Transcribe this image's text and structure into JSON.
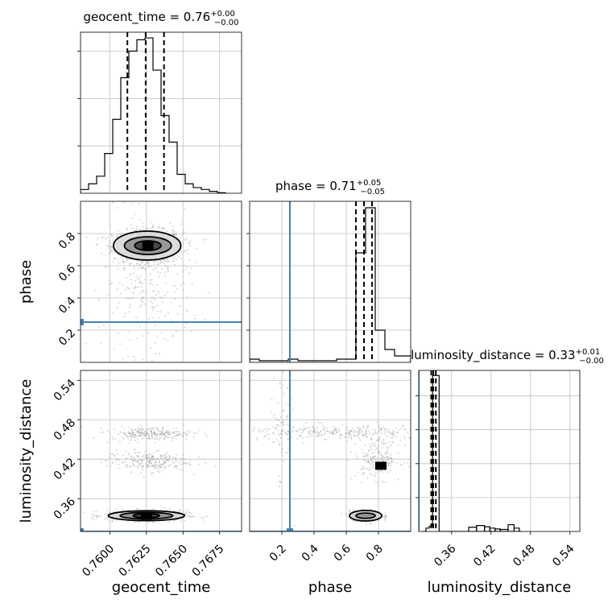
{
  "chart_data": {
    "type": "corner",
    "parameters": [
      "geocent_time",
      "phase",
      "luminosity_distance"
    ],
    "truths": {
      "geocent_time": null,
      "phase": 0.25,
      "luminosity_distance": 0.31
    },
    "grid": true,
    "axis_ranges": {
      "geocent_time": [
        0.758,
        0.769
      ],
      "phase": [
        0.0,
        1.0
      ],
      "luminosity_distance": [
        0.31,
        0.555
      ]
    },
    "ticks": {
      "geocent_time": [
        "0.7600",
        "0.7625",
        "0.7650",
        "0.7675"
      ],
      "phase": [
        "0.2",
        "0.4",
        "0.6",
        "0.8"
      ],
      "luminosity_distance": [
        "0.36",
        "0.42",
        "0.48",
        "0.54"
      ]
    },
    "tick_values": {
      "geocent_time": [
        0.76,
        0.7625,
        0.765,
        0.7675
      ],
      "phase": [
        0.2,
        0.4,
        0.6,
        0.8
      ],
      "luminosity_distance": [
        0.36,
        0.42,
        0.48,
        0.54
      ]
    },
    "titles": {
      "geocent_time": {
        "label": "geocent_time = 0.76",
        "plus": "+0.00",
        "minus": "−0.00"
      },
      "phase": {
        "label": "phase = 0.71",
        "plus": "+0.05",
        "minus": "−0.05"
      },
      "luminosity_distance": {
        "label": "luminosity_distance = 0.33",
        "plus": "+0.01",
        "minus": "−0.00"
      }
    },
    "histograms": {
      "geocent_time": {
        "edges": [
          0.758,
          0.75855,
          0.7591,
          0.75965,
          0.7602,
          0.76075,
          0.7613,
          0.76185,
          0.7624,
          0.76295,
          0.7635,
          0.76405,
          0.7646,
          0.76515,
          0.7657,
          0.76625,
          0.7668,
          0.76735,
          0.7679
        ],
        "counts": [
          0.02,
          0.05,
          0.09,
          0.21,
          0.39,
          0.61,
          0.75,
          0.81,
          0.82,
          0.65,
          0.41,
          0.27,
          0.1,
          0.05,
          0.03,
          0.02,
          0.01,
          0.003
        ],
        "quantiles": [
          0.7612,
          0.76245,
          0.7637
        ]
      },
      "phase": {
        "edges": [
          0.0,
          0.06,
          0.12,
          0.18,
          0.24,
          0.3,
          0.36,
          0.42,
          0.48,
          0.54,
          0.6,
          0.66,
          0.72,
          0.78,
          0.84,
          0.9,
          0.96,
          1.0
        ],
        "counts": [
          0.02,
          0.01,
          0.01,
          0.01,
          0.02,
          0.01,
          0.01,
          0.01,
          0.01,
          0.02,
          0.02,
          0.68,
          0.96,
          0.2,
          0.08,
          0.04,
          0.04
        ],
        "quantiles": [
          0.66,
          0.71,
          0.76
        ]
      },
      "luminosity_distance": {
        "edges": [
          0.316,
          0.321,
          0.326,
          0.331,
          0.336,
          0.341,
          0.346,
          0.351,
          0.356,
          0.361,
          0.366,
          0.371,
          0.376,
          0.381,
          0.386,
          0.391,
          0.396,
          0.401,
          0.406,
          0.411,
          0.416,
          0.421,
          0.426,
          0.431,
          0.436,
          0.441,
          0.446,
          0.451,
          0.456,
          0.461,
          0.466
        ],
        "counts": [
          0.0,
          0.02,
          0.03,
          0.92,
          0.92,
          0.0,
          0.0,
          0.0,
          0.0,
          0.0,
          0.0,
          0.0,
          0.0,
          0.0,
          0.0,
          0.0,
          0.0,
          0.0,
          0.0,
          0.0,
          0.0,
          0.0,
          0.0,
          0.0,
          0.0,
          0.0,
          0.0,
          0.0,
          0.0,
          0.0
        ],
        "quantiles": [
          0.329,
          0.332,
          0.336
        ]
      }
    },
    "extra_histogram_bumps": {
      "luminosity_distance": [
        {
          "x0": 0.386,
          "x1": 0.398,
          "value": 0.025
        },
        {
          "x0": 0.398,
          "x1": 0.41,
          "value": 0.035
        },
        {
          "x0": 0.41,
          "x1": 0.418,
          "value": 0.028
        },
        {
          "x0": 0.418,
          "x1": 0.426,
          "value": 0.02
        },
        {
          "x0": 0.426,
          "x1": 0.434,
          "value": 0.015
        },
        {
          "x0": 0.434,
          "x1": 0.446,
          "value": 0.012
        },
        {
          "x0": 0.446,
          "x1": 0.455,
          "value": 0.04
        },
        {
          "x0": 0.455,
          "x1": 0.463,
          "value": 0.02
        }
      ]
    },
    "hist_ymax": {
      "geocent_time": 0.85,
      "phase": 1.0,
      "luminosity_distance": 0.95
    },
    "hist_yticks": {
      "geocent_time": [
        0.25,
        0.5,
        0.75
      ],
      "phase": [
        0.2,
        0.4,
        0.6,
        0.8
      ],
      "luminosity_distance": [
        0.2,
        0.4,
        0.6,
        0.8
      ]
    },
    "scatter_clusters": {
      "phase_vs_geocent_time": [
        {
          "x": 0.7626,
          "y": 0.72,
          "sx": 0.0012,
          "sy": 0.05,
          "n": 900
        },
        {
          "x": 0.7626,
          "y": 0.5,
          "sx": 0.0015,
          "sy": 0.22,
          "n": 300
        }
      ],
      "luminosity_distance_vs_geocent_time": [
        {
          "x": 0.7625,
          "y": 0.334,
          "sx": 0.0014,
          "sy": 0.004,
          "n": 600
        },
        {
          "x": 0.7628,
          "y": 0.459,
          "sx": 0.0014,
          "sy": 0.005,
          "n": 250
        },
        {
          "x": 0.7626,
          "y": 0.417,
          "sx": 0.0014,
          "sy": 0.008,
          "n": 250
        }
      ],
      "luminosity_distance_vs_phase": [
        {
          "x": 0.72,
          "y": 0.334,
          "sx": 0.05,
          "sy": 0.004,
          "n": 400
        },
        {
          "x": 0.55,
          "y": 0.46,
          "sx": 0.3,
          "sy": 0.006,
          "n": 300
        },
        {
          "x": 0.8,
          "y": 0.42,
          "sx": 0.07,
          "sy": 0.015,
          "n": 200
        },
        {
          "x": 0.2,
          "y": 0.47,
          "sx": 0.03,
          "sy": 0.05,
          "n": 60
        }
      ]
    },
    "contours": {
      "phase_vs_geocent_time": [
        {
          "cx": 0.76255,
          "cy": 0.725,
          "rx": 0.0023,
          "ry": 0.09
        },
        {
          "cx": 0.7626,
          "cy": 0.725,
          "rx": 0.0016,
          "ry": 0.055
        },
        {
          "cx": 0.7626,
          "cy": 0.725,
          "rx": 0.0009,
          "ry": 0.03
        }
      ],
      "luminosity_distance_vs_geocent_time": [
        {
          "cx": 0.7625,
          "cy": 0.334,
          "rx": 0.0026,
          "ry": 0.0075
        },
        {
          "cx": 0.7625,
          "cy": 0.334,
          "rx": 0.0018,
          "ry": 0.005
        },
        {
          "cx": 0.7625,
          "cy": 0.334,
          "rx": 0.0009,
          "ry": 0.003
        }
      ],
      "luminosity_distance_vs_phase": [
        {
          "cx": 0.72,
          "cy": 0.334,
          "rx": 0.1,
          "ry": 0.008
        },
        {
          "cx": 0.72,
          "cy": 0.334,
          "rx": 0.06,
          "ry": 0.004
        },
        {
          "cx": 0.815,
          "cy": 0.41,
          "rx": 0.02,
          "ry": 0.005
        }
      ]
    },
    "colors": {
      "truth": "#4682b4",
      "hist": "#000000",
      "scatter": "#8c8c8c",
      "grid": "#c0c0c0"
    }
  }
}
